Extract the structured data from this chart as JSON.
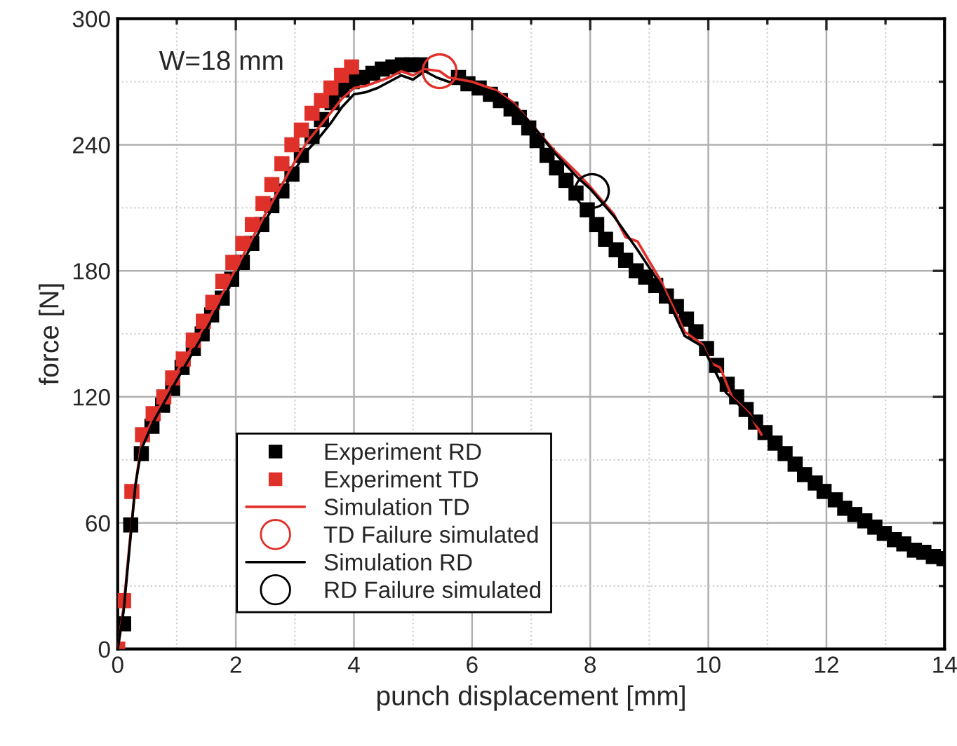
{
  "chart_data": {
    "type": "scatter",
    "xlabel": "punch displacement [mm]",
    "ylabel": "force [N]",
    "xlim": [
      0,
      14
    ],
    "ylim": [
      0,
      300
    ],
    "xticks": [
      0,
      2,
      4,
      6,
      8,
      10,
      12,
      14
    ],
    "yticks": [
      0,
      60,
      120,
      180,
      240,
      300
    ],
    "grid": true,
    "legend": "bottom left",
    "annotations": [
      "W=18 mm"
    ],
    "series": [
      {
        "name": "Experiment RD",
        "marker": "square",
        "color": "#000000",
        "x": [
          0.1,
          0.22,
          0.4,
          0.58,
          0.76,
          0.93,
          1.09,
          1.28,
          1.43,
          1.59,
          1.77,
          1.93,
          2.11,
          2.27,
          2.44,
          2.61,
          2.78,
          2.95,
          3.11,
          3.29,
          3.45,
          3.63,
          3.8,
          3.97,
          4.14,
          4.32,
          4.48,
          4.66,
          4.82,
          4.98,
          5.13,
          5.77,
          5.93,
          6.12,
          6.31,
          6.48,
          6.66,
          6.8,
          6.96,
          7.1,
          7.27,
          7.43,
          7.59,
          7.76,
          7.95,
          8.11,
          8.26,
          8.44,
          8.6,
          8.78,
          8.94,
          9.11,
          9.29,
          9.46,
          9.63,
          9.79,
          9.97,
          10.14,
          10.32,
          10.48,
          10.64,
          10.8,
          10.96,
          11.13,
          11.3,
          11.47,
          11.63,
          11.81,
          11.96,
          12.15,
          12.31,
          12.48,
          12.65,
          12.82,
          12.98,
          13.15,
          13.31,
          13.49,
          13.65,
          13.81,
          13.99
        ],
        "values": [
          12,
          59,
          93,
          106,
          116,
          124,
          134,
          143,
          150,
          159,
          167,
          176,
          184,
          193,
          202,
          211,
          218,
          226,
          235,
          244,
          252,
          260,
          266,
          270,
          272,
          274,
          276,
          277,
          278,
          278,
          278,
          272,
          269,
          267,
          264,
          261,
          257,
          253,
          248,
          242,
          235,
          229,
          223,
          217,
          209,
          202,
          195,
          190,
          185,
          180,
          177,
          173,
          168,
          163,
          157,
          151,
          143,
          135,
          126,
          120,
          114,
          108,
          103,
          98,
          93,
          88,
          83,
          79,
          75,
          71,
          67,
          64,
          61,
          58,
          55,
          52,
          50,
          47,
          46,
          44,
          43
        ]
      },
      {
        "name": "Experiment TD",
        "marker": "square",
        "color": "#e0302a",
        "x": [
          0,
          0.1,
          0.24,
          0.42,
          0.6,
          0.78,
          0.93,
          1.11,
          1.28,
          1.45,
          1.61,
          1.78,
          1.95,
          2.12,
          2.28,
          2.46,
          2.61,
          2.78,
          2.95,
          3.11,
          3.29,
          3.45,
          3.61,
          3.79,
          3.96
        ],
        "values": [
          0,
          23,
          75,
          102,
          112,
          120,
          129,
          138,
          147,
          156,
          165,
          175,
          184,
          193,
          202,
          212,
          221,
          231,
          240,
          247,
          255,
          261,
          267,
          273,
          277
        ]
      },
      {
        "name": "Simulation TD",
        "type": "line",
        "marker": "none",
        "line_style": "solid",
        "color": "#e0302a",
        "x": [
          0,
          0.1,
          0.2,
          0.3,
          0.4,
          0.6,
          0.8,
          1.0,
          1.5,
          2.0,
          2.5,
          3.0,
          3.2,
          3.4,
          3.6,
          3.8,
          4.0,
          4.2,
          4.4,
          4.6,
          4.8,
          5.0,
          5.2,
          5.45,
          5.6,
          6.0,
          6.4,
          6.7,
          7.0,
          7.4,
          7.8,
          8.0,
          8.4,
          8.6,
          8.8,
          9.2,
          9.6,
          9.9,
          10.05,
          10.2,
          10.4,
          10.7,
          10.9
        ],
        "values": [
          0,
          20,
          50,
          78,
          98,
          110,
          120,
          132,
          155,
          181,
          207,
          232,
          241,
          248,
          255,
          262,
          267,
          268,
          270,
          272,
          275,
          273,
          276,
          275,
          272,
          270,
          266,
          260,
          250,
          237,
          226,
          220,
          207,
          196,
          194,
          175,
          151,
          145,
          136,
          134,
          120,
          112,
          102
        ]
      },
      {
        "name": "TD Failure simulated",
        "marker": "circle",
        "color": "#e0302a",
        "x": [
          5.45
        ],
        "values": [
          275
        ]
      },
      {
        "name": "Simulation RD",
        "type": "line",
        "marker": "none",
        "line_style": "solid",
        "color": "#000000",
        "x": [
          0,
          0.1,
          0.2,
          0.3,
          0.4,
          0.6,
          0.8,
          1.0,
          1.5,
          2.0,
          2.5,
          3.0,
          3.2,
          3.4,
          3.6,
          3.8,
          4.0,
          4.2,
          4.4,
          4.6,
          4.8,
          5.0,
          5.2,
          5.4,
          5.6,
          6.0,
          6.4,
          6.7,
          7.0,
          7.4,
          7.8,
          8.0,
          8.4,
          8.8,
          9.2,
          9.6,
          9.9,
          10.1,
          10.3,
          10.6,
          10.9
        ],
        "values": [
          0,
          18,
          48,
          78,
          95,
          108,
          118,
          128,
          152,
          178,
          204,
          228,
          237,
          243,
          250,
          258,
          264,
          265,
          267,
          270,
          273,
          271,
          275,
          272,
          270,
          268,
          265,
          259,
          250,
          236,
          224,
          219,
          206,
          190,
          173,
          149,
          144,
          133,
          122,
          114,
          105
        ]
      },
      {
        "name": "RD Failure simulated",
        "marker": "circle",
        "color": "#000000",
        "x": [
          8.03
        ],
        "values": [
          218
        ]
      }
    ]
  }
}
